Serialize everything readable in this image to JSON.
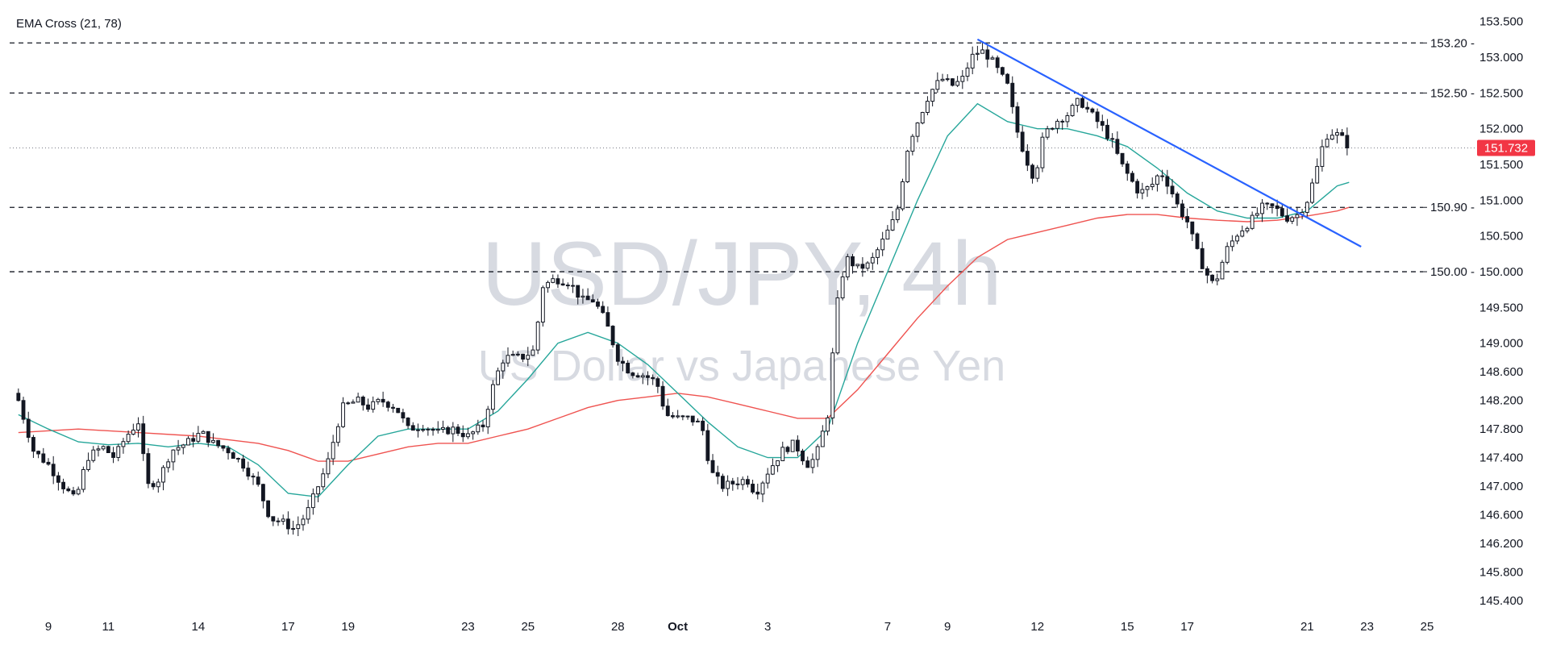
{
  "indicator_label": "EMA Cross (21, 78)",
  "watermark": {
    "symbol": "USD/JPY, 4h",
    "description": "US Dollar vs Japanese Yen"
  },
  "colors": {
    "up_body": "#ffffff",
    "down_body": "#131722",
    "wick": "#131722",
    "ema_fast": "#26a69a",
    "ema_slow": "#ef5350",
    "trendline": "#2962ff",
    "current_price_bg": "#f23645",
    "grid_line": "#131722",
    "axis_text": "#131722",
    "watermark": "#d1d4dc"
  },
  "chart_data": {
    "type": "candlestick",
    "title": "",
    "indicator": "EMA Cross (21, 78)",
    "ylim": [
      145.2,
      153.75
    ],
    "y_axis_ticks": [
      "153.500",
      "153.000",
      "152.500",
      "152.000",
      "151.500",
      "151.000",
      "150.500",
      "150.000",
      "149.500",
      "149.000",
      "148.600",
      "148.200",
      "147.800",
      "147.400",
      "147.000",
      "146.600",
      "146.200",
      "145.800",
      "145.400"
    ],
    "y_axis_tick_values": [
      153.5,
      153.0,
      152.5,
      152.0,
      151.5,
      151.0,
      150.5,
      150.0,
      149.5,
      149.0,
      148.6,
      148.2,
      147.8,
      147.4,
      147.0,
      146.6,
      146.2,
      145.8,
      145.4
    ],
    "x_axis_ticks": [
      {
        "label": "9",
        "day": 9
      },
      {
        "label": "11",
        "day": 11
      },
      {
        "label": "14",
        "day": 14
      },
      {
        "label": "17",
        "day": 17
      },
      {
        "label": "19",
        "day": 19
      },
      {
        "label": "23",
        "day": 23
      },
      {
        "label": "25",
        "day": 25
      },
      {
        "label": "28",
        "day": 28
      },
      {
        "label": "Oct",
        "day": 30,
        "bold": true
      },
      {
        "label": "3",
        "day": 33
      },
      {
        "label": "7",
        "day": 37
      },
      {
        "label": "9",
        "day": 39
      },
      {
        "label": "12",
        "day": 42
      },
      {
        "label": "15",
        "day": 45
      },
      {
        "label": "17",
        "day": 47
      },
      {
        "label": "21",
        "day": 51
      },
      {
        "label": "23",
        "day": 53
      },
      {
        "label": "25",
        "day": 55
      }
    ],
    "x_domain_days": [
      8.0,
      56.5
    ],
    "horizontal_levels": [
      {
        "label": "153.20",
        "value": 153.2
      },
      {
        "label": "152.50",
        "value": 152.5
      },
      {
        "label": "150.90",
        "value": 150.9
      },
      {
        "label": "150.00",
        "value": 150.0
      }
    ],
    "current_price": {
      "label": "151.732",
      "value": 151.732
    },
    "trendline": {
      "start": {
        "day": 40.0,
        "price": 153.25
      },
      "end": {
        "day": 52.8,
        "price": 150.35
      }
    },
    "candle_anchors": [
      [
        8.0,
        148.2
      ],
      [
        8.5,
        147.5
      ],
      [
        9.0,
        147.3
      ],
      [
        9.5,
        147.0
      ],
      [
        9.9,
        146.8
      ],
      [
        10.3,
        147.4
      ],
      [
        10.8,
        147.55
      ],
      [
        11.2,
        147.4
      ],
      [
        11.6,
        147.7
      ],
      [
        12.0,
        147.9
      ],
      [
        12.3,
        147.0
      ],
      [
        12.7,
        147.1
      ],
      [
        13.1,
        147.5
      ],
      [
        13.6,
        147.6
      ],
      [
        14.1,
        147.75
      ],
      [
        14.5,
        147.6
      ],
      [
        15.0,
        147.5
      ],
      [
        15.5,
        147.3
      ],
      [
        16.0,
        147.0
      ],
      [
        16.4,
        146.55
      ],
      [
        16.8,
        146.5
      ],
      [
        17.2,
        146.4
      ],
      [
        17.6,
        146.6
      ],
      [
        17.9,
        146.9
      ],
      [
        18.3,
        147.3
      ],
      [
        18.8,
        148.1
      ],
      [
        19.3,
        148.2
      ],
      [
        19.7,
        148.1
      ],
      [
        20.1,
        148.2
      ],
      [
        20.6,
        148.1
      ],
      [
        21.0,
        147.8
      ],
      [
        21.5,
        147.85
      ],
      [
        22.0,
        147.75
      ],
      [
        22.5,
        147.8
      ],
      [
        23.0,
        147.7
      ],
      [
        23.5,
        147.85
      ],
      [
        23.9,
        148.5
      ],
      [
        24.2,
        148.8
      ],
      [
        24.8,
        148.8
      ],
      [
        25.2,
        148.9
      ],
      [
        25.5,
        149.8
      ],
      [
        25.9,
        149.9
      ],
      [
        26.4,
        149.85
      ],
      [
        26.8,
        149.6
      ],
      [
        27.2,
        149.6
      ],
      [
        27.6,
        149.3
      ],
      [
        28.0,
        148.8
      ],
      [
        28.4,
        148.6
      ],
      [
        28.9,
        148.55
      ],
      [
        29.3,
        148.45
      ],
      [
        29.6,
        148.0
      ],
      [
        30.0,
        147.95
      ],
      [
        30.4,
        147.95
      ],
      [
        30.8,
        147.85
      ],
      [
        31.1,
        147.2
      ],
      [
        31.5,
        147.0
      ],
      [
        31.9,
        147.05
      ],
      [
        32.3,
        147.1
      ],
      [
        32.6,
        146.9
      ],
      [
        33.0,
        147.2
      ],
      [
        33.5,
        147.5
      ],
      [
        33.9,
        147.6
      ],
      [
        34.3,
        147.3
      ],
      [
        34.6,
        147.4
      ],
      [
        35.0,
        148.0
      ],
      [
        35.3,
        149.5
      ],
      [
        35.6,
        150.2
      ],
      [
        36.0,
        150.05
      ],
      [
        36.4,
        150.1
      ],
      [
        36.8,
        150.4
      ],
      [
        37.3,
        150.8
      ],
      [
        37.7,
        151.8
      ],
      [
        38.1,
        152.2
      ],
      [
        38.4,
        152.5
      ],
      [
        38.8,
        152.7
      ],
      [
        39.2,
        152.6
      ],
      [
        39.5,
        152.7
      ],
      [
        39.8,
        153.0
      ],
      [
        40.1,
        153.1
      ],
      [
        40.4,
        153.0
      ],
      [
        40.7,
        152.8
      ],
      [
        41.0,
        152.6
      ],
      [
        41.3,
        152.0
      ],
      [
        41.6,
        151.6
      ],
      [
        41.9,
        151.3
      ],
      [
        42.2,
        151.9
      ],
      [
        42.6,
        152.1
      ],
      [
        43.0,
        152.2
      ],
      [
        43.4,
        152.4
      ],
      [
        43.8,
        152.2
      ],
      [
        44.2,
        152.0
      ],
      [
        44.5,
        151.8
      ],
      [
        44.8,
        151.5
      ],
      [
        45.1,
        151.3
      ],
      [
        45.4,
        151.1
      ],
      [
        45.8,
        151.2
      ],
      [
        46.1,
        151.4
      ],
      [
        46.4,
        151.2
      ],
      [
        46.7,
        150.9
      ],
      [
        47.0,
        150.7
      ],
      [
        47.3,
        150.3
      ],
      [
        47.6,
        150.0
      ],
      [
        47.9,
        149.8
      ],
      [
        48.3,
        150.3
      ],
      [
        48.7,
        150.55
      ],
      [
        49.1,
        150.7
      ],
      [
        49.5,
        150.9
      ],
      [
        49.9,
        150.9
      ],
      [
        50.3,
        150.75
      ],
      [
        50.7,
        150.8
      ],
      [
        51.0,
        151.0
      ],
      [
        51.3,
        151.4
      ],
      [
        51.6,
        151.9
      ],
      [
        51.9,
        151.95
      ],
      [
        52.2,
        151.85
      ],
      [
        52.4,
        151.73
      ]
    ],
    "ema_21": [
      [
        8.0,
        148.0
      ],
      [
        9.0,
        147.8
      ],
      [
        10.0,
        147.62
      ],
      [
        11.0,
        147.58
      ],
      [
        12.0,
        147.6
      ],
      [
        13.0,
        147.55
      ],
      [
        14.0,
        147.6
      ],
      [
        15.0,
        147.55
      ],
      [
        16.0,
        147.3
      ],
      [
        17.0,
        146.9
      ],
      [
        18.0,
        146.85
      ],
      [
        19.0,
        147.3
      ],
      [
        20.0,
        147.7
      ],
      [
        21.0,
        147.8
      ],
      [
        22.0,
        147.8
      ],
      [
        23.0,
        147.8
      ],
      [
        24.0,
        148.05
      ],
      [
        25.0,
        148.5
      ],
      [
        26.0,
        149.0
      ],
      [
        27.0,
        149.15
      ],
      [
        28.0,
        149.0
      ],
      [
        29.0,
        148.7
      ],
      [
        30.0,
        148.3
      ],
      [
        31.0,
        147.9
      ],
      [
        32.0,
        147.55
      ],
      [
        33.0,
        147.4
      ],
      [
        34.0,
        147.4
      ],
      [
        35.0,
        147.8
      ],
      [
        36.0,
        149.0
      ],
      [
        37.0,
        150.0
      ],
      [
        38.0,
        151.0
      ],
      [
        39.0,
        151.9
      ],
      [
        40.0,
        152.35
      ],
      [
        41.0,
        152.1
      ],
      [
        42.0,
        152.0
      ],
      [
        43.0,
        152.0
      ],
      [
        44.0,
        151.9
      ],
      [
        45.0,
        151.75
      ],
      [
        46.0,
        151.45
      ],
      [
        47.0,
        151.1
      ],
      [
        48.0,
        150.85
      ],
      [
        49.0,
        150.75
      ],
      [
        50.0,
        150.75
      ],
      [
        51.0,
        150.85
      ],
      [
        52.0,
        151.2
      ],
      [
        52.4,
        151.25
      ]
    ],
    "ema_78": [
      [
        8.0,
        147.75
      ],
      [
        10.0,
        147.8
      ],
      [
        12.0,
        147.75
      ],
      [
        14.0,
        147.7
      ],
      [
        16.0,
        147.6
      ],
      [
        17.0,
        147.5
      ],
      [
        18.0,
        147.35
      ],
      [
        19.0,
        147.35
      ],
      [
        20.0,
        147.45
      ],
      [
        21.0,
        147.55
      ],
      [
        22.0,
        147.6
      ],
      [
        23.0,
        147.6
      ],
      [
        24.0,
        147.7
      ],
      [
        25.0,
        147.8
      ],
      [
        26.0,
        147.95
      ],
      [
        27.0,
        148.1
      ],
      [
        28.0,
        148.2
      ],
      [
        29.0,
        148.25
      ],
      [
        30.0,
        148.3
      ],
      [
        31.0,
        148.25
      ],
      [
        32.0,
        148.15
      ],
      [
        33.0,
        148.05
      ],
      [
        34.0,
        147.95
      ],
      [
        35.0,
        147.95
      ],
      [
        36.0,
        148.35
      ],
      [
        37.0,
        148.85
      ],
      [
        38.0,
        149.35
      ],
      [
        39.0,
        149.8
      ],
      [
        40.0,
        150.2
      ],
      [
        41.0,
        150.45
      ],
      [
        42.0,
        150.55
      ],
      [
        43.0,
        150.65
      ],
      [
        44.0,
        150.75
      ],
      [
        45.0,
        150.8
      ],
      [
        46.0,
        150.8
      ],
      [
        47.0,
        150.75
      ],
      [
        48.0,
        150.72
      ],
      [
        49.0,
        150.7
      ],
      [
        50.0,
        150.72
      ],
      [
        51.0,
        150.78
      ],
      [
        52.0,
        150.85
      ],
      [
        52.4,
        150.9
      ]
    ]
  }
}
